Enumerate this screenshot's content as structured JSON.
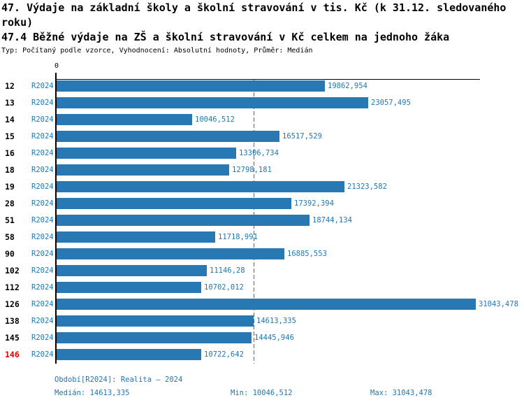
{
  "header": {
    "title": "47. Výdaje na základní školy a školní stravování v tis. Kč (k 31.12. sledovaného roku)",
    "subtitle": "47.4 Běžné výdaje na ZŠ a školní stravování v Kč celkem na jednoho žáka",
    "meta": "Typ: Počítaný podle vzorce, Vyhodnocení: Absolutní hodnoty, Průměr: Medián"
  },
  "chart_data": {
    "type": "bar",
    "orientation": "horizontal",
    "title": "47.4 Běžné výdaje na ZŠ a školní stravování v Kč celkem na jednoho žáka",
    "axis_zero_label": "0",
    "series_label": "R2024",
    "categories": [
      "12",
      "13",
      "14",
      "15",
      "16",
      "18",
      "19",
      "28",
      "51",
      "58",
      "90",
      "102",
      "112",
      "126",
      "138",
      "145",
      "146"
    ],
    "values": [
      19862.954,
      23057.495,
      10046.512,
      16517.529,
      13306.734,
      12798.181,
      21323.582,
      17392.394,
      18744.134,
      11718.991,
      16885.553,
      11146.28,
      10702.012,
      31043.478,
      14613.335,
      14445.946,
      10722.642
    ],
    "value_labels": [
      "19862,954",
      "23057,495",
      "10046,512",
      "16517,529",
      "13306,734",
      "12798,181",
      "21323,582",
      "17392,394",
      "18744,134",
      "11718,991",
      "16885,553",
      "11146,28",
      "10702,012",
      "31043,478",
      "14613,335",
      "14445,946",
      "10722,642"
    ],
    "highlight_category": "146",
    "median": 14613.335,
    "min": 10046.512,
    "max": 31043.478,
    "xlim": [
      0,
      31043.478
    ],
    "grid": false,
    "legend": "none",
    "colors": {
      "bar": "#2878b4",
      "label_text": "#1f77b4",
      "median_line": "#1f77b4",
      "highlight_text": "#e00000",
      "axis": "#000000"
    }
  },
  "footer": {
    "period": "Období[R2024]: Realita – 2024",
    "median": "Medián: 14613,335",
    "min": "Min: 10046,512",
    "max": "Max: 31043,478"
  }
}
